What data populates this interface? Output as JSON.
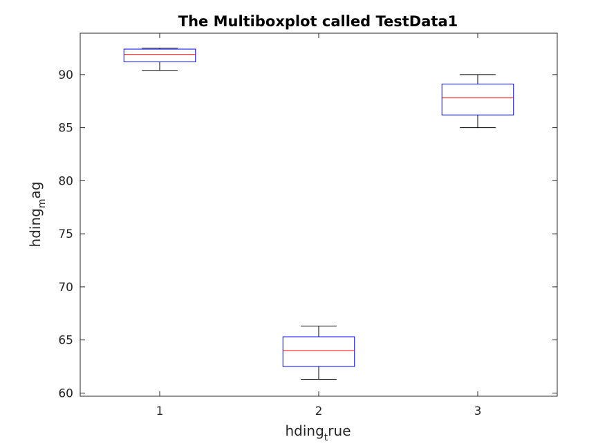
{
  "chart_data": {
    "type": "box",
    "title": "The Multiboxplot called TestData1",
    "xlabel": {
      "base": "hding",
      "subscript": "t",
      "rest": "rue"
    },
    "ylabel": {
      "base": "hding",
      "subscript": "m",
      "rest": "ag"
    },
    "categories": [
      "1",
      "2",
      "3"
    ],
    "ylim": [
      59.7,
      93.9
    ],
    "yticks": [
      60,
      65,
      70,
      75,
      80,
      85,
      90
    ],
    "boxes": [
      {
        "category": "1",
        "whisker_low": 90.4,
        "q1": 91.2,
        "median": 91.9,
        "q3": 92.4,
        "whisker_high": 92.5
      },
      {
        "category": "2",
        "whisker_low": 61.3,
        "q1": 62.5,
        "median": 64.0,
        "q3": 65.3,
        "whisker_high": 66.3
      },
      {
        "category": "3",
        "whisker_low": 85.0,
        "q1": 86.2,
        "median": 87.8,
        "q3": 89.1,
        "whisker_high": 90.0
      }
    ],
    "colors": {
      "box": "#0000ff",
      "median": "#ff0000",
      "whisker": "#000000",
      "axis": "#262626"
    },
    "grid": false
  }
}
